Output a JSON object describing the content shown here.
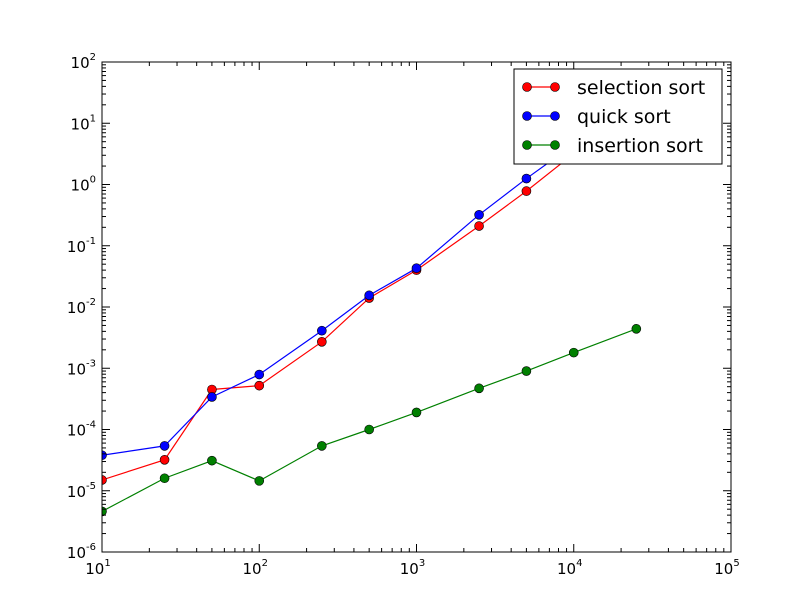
{
  "chart_data": {
    "type": "line",
    "title": "",
    "xlabel": "",
    "ylabel": "",
    "x_scale": "log",
    "y_scale": "log",
    "xlim": [
      10,
      100000
    ],
    "ylim": [
      1e-06,
      100
    ],
    "grid": false,
    "legend_position": "top-right",
    "x_ticks": [
      {
        "base": "10",
        "exp": "1"
      },
      {
        "base": "10",
        "exp": "2"
      },
      {
        "base": "10",
        "exp": "3"
      },
      {
        "base": "10",
        "exp": "4"
      },
      {
        "base": "10",
        "exp": "5"
      }
    ],
    "y_ticks": [
      {
        "base": "10",
        "exp": "-6"
      },
      {
        "base": "10",
        "exp": "-5"
      },
      {
        "base": "10",
        "exp": "-4"
      },
      {
        "base": "10",
        "exp": "-3"
      },
      {
        "base": "10",
        "exp": "-2"
      },
      {
        "base": "10",
        "exp": "-1"
      },
      {
        "base": "10",
        "exp": "0"
      },
      {
        "base": "10",
        "exp": "1"
      },
      {
        "base": "10",
        "exp": "2"
      }
    ],
    "series": [
      {
        "name": "selection sort",
        "color": "#ff0000",
        "marker": "circle",
        "x": [
          10,
          25,
          50,
          100,
          250,
          500,
          1000,
          2500,
          5000,
          10000
        ],
        "y": [
          1.5e-05,
          3.2e-05,
          0.00045,
          0.00052,
          0.0027,
          0.014,
          0.04,
          0.21,
          0.78,
          3.2
        ]
      },
      {
        "name": "quick sort",
        "color": "#0000ff",
        "marker": "circle",
        "x": [
          10,
          25,
          50,
          100,
          250,
          500,
          1000,
          2500,
          5000,
          10000
        ],
        "y": [
          3.8e-05,
          5.4e-05,
          0.00034,
          0.00079,
          0.0041,
          0.0155,
          0.043,
          0.32,
          1.25,
          4.5
        ]
      },
      {
        "name": "insertion sort",
        "color": "#008000",
        "marker": "circle",
        "x": [
          10,
          25,
          50,
          100,
          250,
          500,
          1000,
          2500,
          5000,
          10000,
          25000
        ],
        "y": [
          4.6e-06,
          1.6e-05,
          3.1e-05,
          1.45e-05,
          5.4e-05,
          0.0001,
          0.00019,
          0.00047,
          0.0009,
          0.0018,
          0.0044
        ]
      }
    ]
  }
}
